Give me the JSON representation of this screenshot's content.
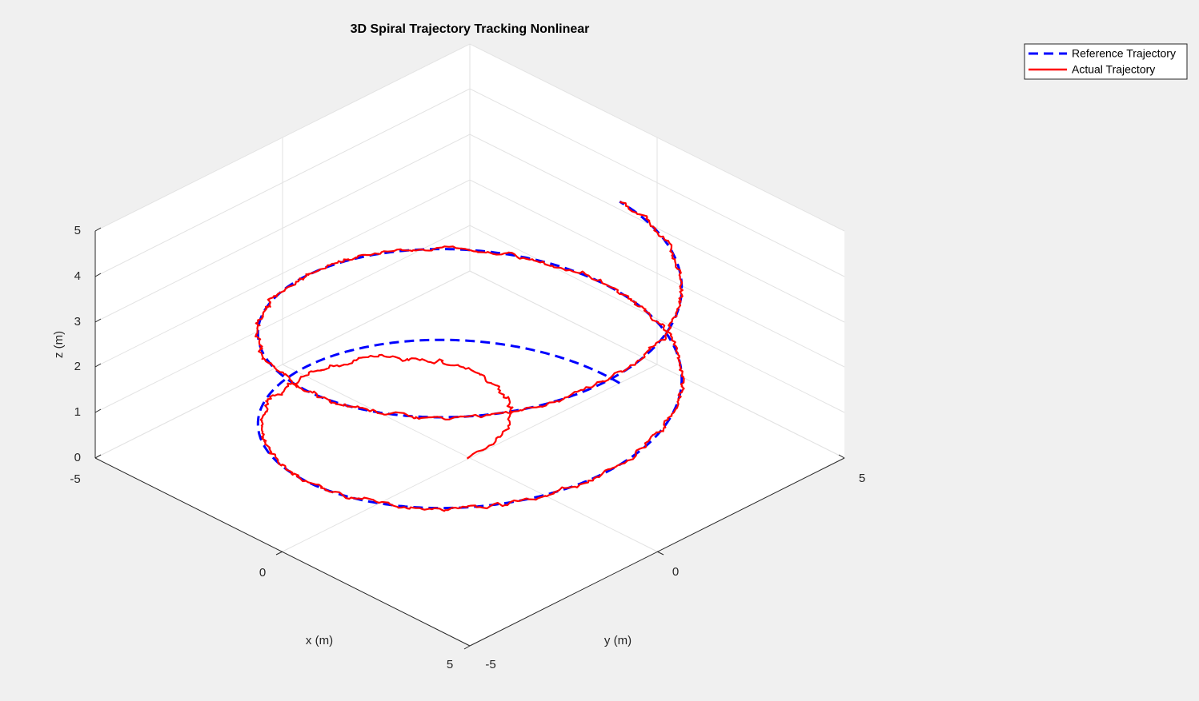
{
  "chart_data": {
    "type": "line",
    "projection": "3d",
    "title": "3D Spiral Trajectory Tracking Nonlinear",
    "xlabel": "x (m)",
    "ylabel": "y (m)",
    "zlabel": "z (m)",
    "xlim": [
      -5,
      5
    ],
    "ylim": [
      -5,
      5
    ],
    "zlim": [
      0,
      5
    ],
    "x_ticks": [
      "-5",
      "0",
      "5"
    ],
    "y_ticks": [
      "-5",
      "0",
      "5"
    ],
    "z_ticks": [
      "0",
      "1",
      "2",
      "3",
      "4",
      "5"
    ],
    "grid": true,
    "legend_position": "top-right",
    "series": [
      {
        "name": "Reference Trajectory",
        "color": "#0000ff",
        "style": "dashed",
        "parametric": {
          "radius": 4,
          "turns": 2,
          "z_start": 0,
          "z_end": 4,
          "start_point": [
            4,
            0,
            0
          ]
        }
      },
      {
        "name": "Actual Trajectory",
        "color": "#ff0000",
        "style": "solid",
        "start_point": [
          0,
          0,
          0
        ],
        "follows": "Reference Trajectory",
        "noise_amplitude_m": 0.08
      }
    ]
  }
}
